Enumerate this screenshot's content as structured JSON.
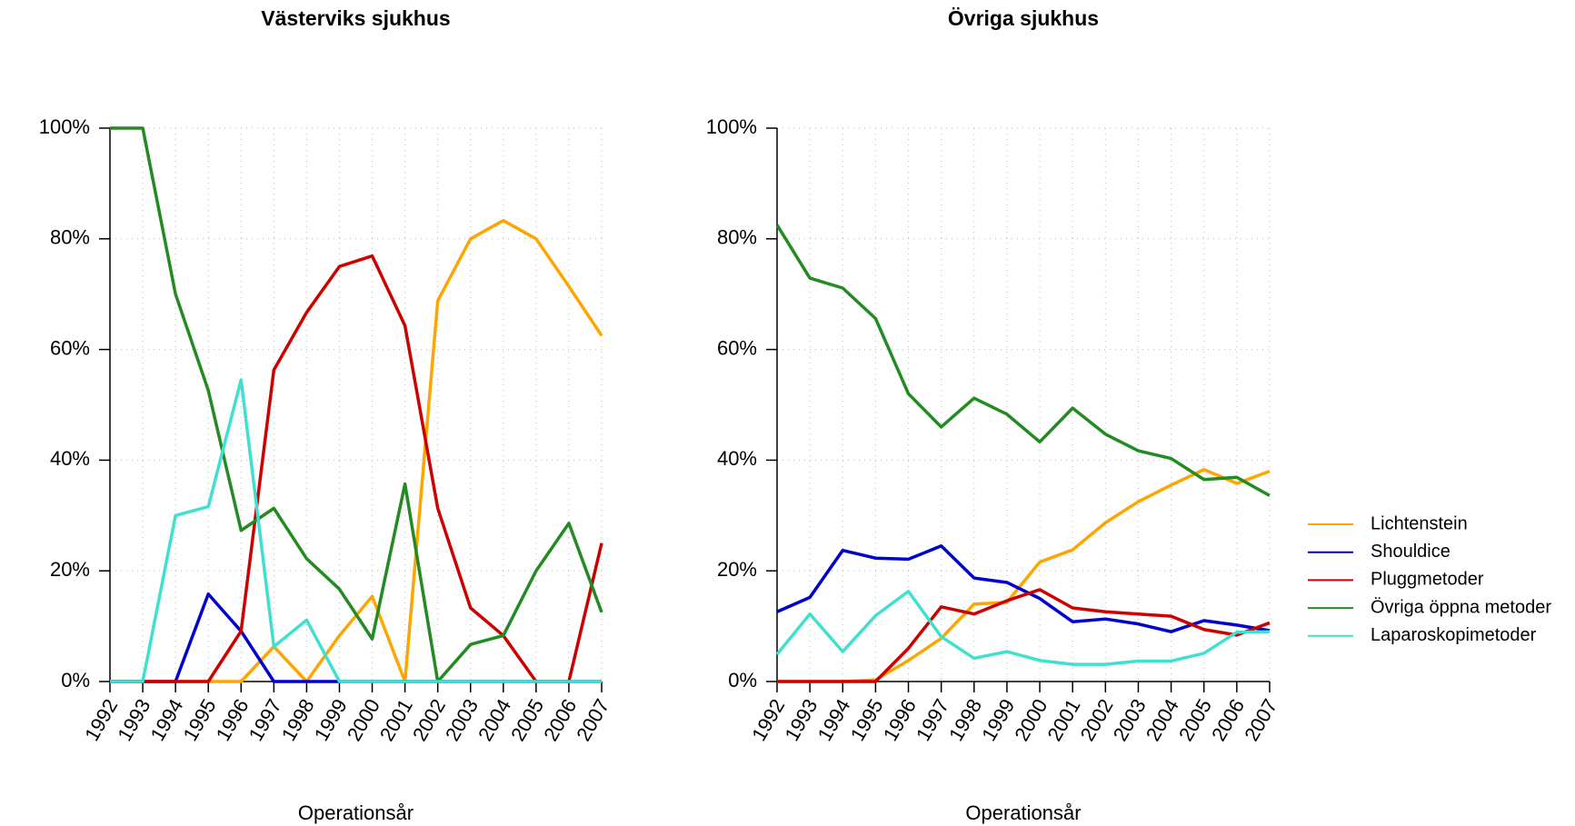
{
  "chart_data": [
    {
      "type": "line",
      "title": "Västerviks sjukhus",
      "xlabel": "Operationsår",
      "x": [
        1992,
        1993,
        1994,
        1995,
        1996,
        1997,
        1998,
        1999,
        2000,
        2001,
        2002,
        2003,
        2004,
        2005,
        2006,
        2007
      ],
      "xlim": [
        1992,
        2007
      ],
      "xticks": [
        1992,
        1993,
        1994,
        1995,
        1996,
        1997,
        1998,
        1999,
        2000,
        2001,
        2002,
        2003,
        2004,
        2005,
        2006,
        2007
      ],
      "ylim": [
        0,
        100
      ],
      "yticks": [
        {
          "value": 0,
          "label": "0%"
        },
        {
          "value": 20,
          "label": "20%"
        },
        {
          "value": 40,
          "label": "40%"
        },
        {
          "value": 60,
          "label": "60%"
        },
        {
          "value": 80,
          "label": "80%"
        },
        {
          "value": 100,
          "label": "100%"
        }
      ],
      "grid": true,
      "series": [
        {
          "color": "#FFA500",
          "values": [
            0,
            0,
            0,
            0,
            0,
            6.3,
            0,
            8.3,
            15.4,
            0,
            68.8,
            80,
            83.3,
            80,
            71.4,
            62.5
          ]
        },
        {
          "color": "#0000CD",
          "values": [
            0,
            0,
            0,
            15.8,
            9.1,
            0,
            0,
            0,
            0,
            0,
            0,
            0,
            0,
            0,
            0,
            0
          ]
        },
        {
          "color": "#CD0000",
          "values": [
            0,
            0,
            0,
            0,
            9.1,
            56.3,
            66.7,
            75,
            76.9,
            64.3,
            31.3,
            13.3,
            8.3,
            0,
            0,
            25
          ]
        },
        {
          "color": "#228B22",
          "values": [
            100,
            100,
            70,
            52.6,
            27.3,
            31.3,
            22.2,
            16.7,
            7.7,
            35.7,
            0,
            6.7,
            8.3,
            20,
            28.6,
            12.5
          ]
        },
        {
          "color": "#40E0D0",
          "values": [
            0,
            0,
            30,
            31.6,
            54.5,
            6.3,
            11.1,
            0,
            0,
            0,
            0,
            0,
            0,
            0,
            0,
            0
          ]
        }
      ]
    },
    {
      "type": "line",
      "title": "Övriga sjukhus",
      "xlabel": "Operationsår",
      "x": [
        1992,
        1993,
        1994,
        1995,
        1996,
        1997,
        1998,
        1999,
        2000,
        2001,
        2002,
        2003,
        2004,
        2005,
        2006,
        2007
      ],
      "xlim": [
        1992,
        2007
      ],
      "xticks": [
        1992,
        1993,
        1994,
        1995,
        1996,
        1997,
        1998,
        1999,
        2000,
        2001,
        2002,
        2003,
        2004,
        2005,
        2006,
        2007
      ],
      "ylim": [
        0,
        100
      ],
      "yticks": [
        {
          "value": 0,
          "label": "0%"
        },
        {
          "value": 20,
          "label": "20%"
        },
        {
          "value": 40,
          "label": "40%"
        },
        {
          "value": 60,
          "label": "60%"
        },
        {
          "value": 80,
          "label": "80%"
        },
        {
          "value": 100,
          "label": "100%"
        }
      ],
      "grid": true,
      "legend": "right",
      "series": [
        {
          "name": "Lichtenstein",
          "color": "#FFA500",
          "values": [
            0,
            0,
            0,
            0.3,
            3.8,
            7.8,
            14,
            14.3,
            21.6,
            23.8,
            28.7,
            32.5,
            35.5,
            38.3,
            35.8,
            38
          ]
        },
        {
          "name": "Shouldice",
          "color": "#0000CD",
          "values": [
            12.6,
            15.2,
            23.7,
            22.3,
            22.1,
            24.5,
            18.7,
            17.9,
            15,
            10.8,
            11.3,
            10.4,
            9,
            11,
            10.2,
            9.2
          ]
        },
        {
          "name": "Pluggmetoder",
          "color": "#CD0000",
          "values": [
            0,
            0,
            0,
            0,
            6,
            13.5,
            12.2,
            14.6,
            16.6,
            13.3,
            12.6,
            12.2,
            11.8,
            9.4,
            8.4,
            10.6
          ]
        },
        {
          "name": "Övriga öppna metoder",
          "color": "#228B22",
          "values": [
            82.5,
            72.9,
            71.1,
            65.6,
            52,
            46,
            51.2,
            48.3,
            43.3,
            49.4,
            44.7,
            41.7,
            40.3,
            36.5,
            36.9,
            33.6
          ]
        },
        {
          "name": "Laparoskopimetoder",
          "color": "#40E0D0",
          "values": [
            4.9,
            12.2,
            5.4,
            11.9,
            16.3,
            8.1,
            4.2,
            5.4,
            3.8,
            3.1,
            3.1,
            3.7,
            3.7,
            5.1,
            8.9,
            9
          ]
        }
      ]
    }
  ]
}
